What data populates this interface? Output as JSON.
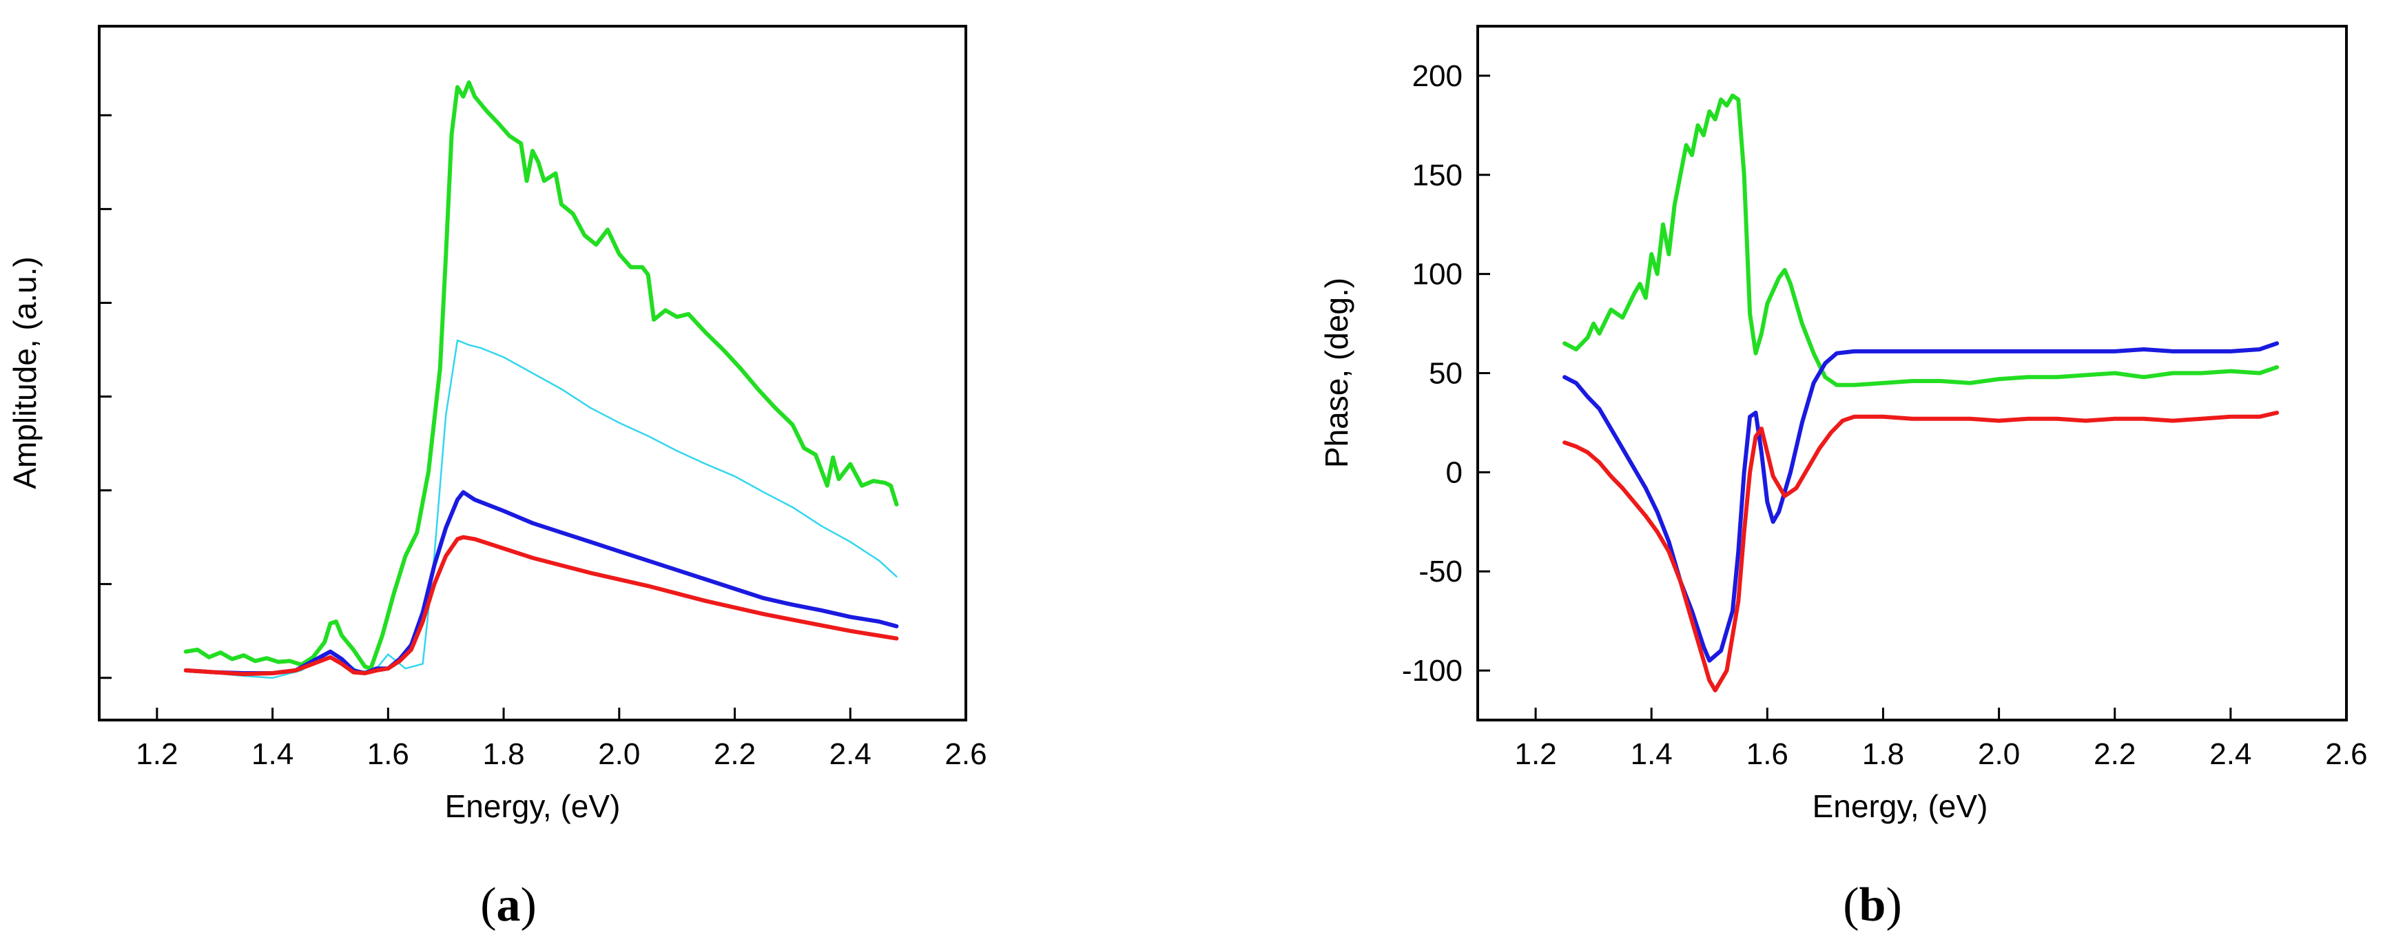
{
  "chart_data": [
    {
      "id": "a",
      "type": "line",
      "panel_label_open": "(",
      "panel_label_letter": "a",
      "panel_label_close": ")",
      "xlabel": "Energy, (eV)",
      "ylabel": "Amplitude, (a.u.)",
      "xlim": [
        1.1,
        2.6
      ],
      "ylim": [
        -0.45,
        6.95
      ],
      "x_ticks": [
        "1.2",
        "1.4",
        "1.6",
        "1.8",
        "2.0",
        "2.2",
        "2.4",
        "2.6"
      ],
      "x_tick_values": [
        1.2,
        1.4,
        1.6,
        1.8,
        2.0,
        2.2,
        2.4,
        2.6
      ],
      "y_tick_values": [
        0,
        1,
        2,
        3,
        4,
        5,
        6
      ],
      "y_ticks_labeled": false,
      "grid": false,
      "series": [
        {
          "name": "green",
          "color": "#22dd22",
          "width": "thick",
          "x": [
            1.25,
            1.27,
            1.29,
            1.31,
            1.33,
            1.35,
            1.37,
            1.39,
            1.41,
            1.43,
            1.45,
            1.47,
            1.49,
            1.5,
            1.51,
            1.52,
            1.54,
            1.56,
            1.57,
            1.59,
            1.61,
            1.63,
            1.65,
            1.67,
            1.69,
            1.7,
            1.71,
            1.72,
            1.73,
            1.74,
            1.75,
            1.77,
            1.79,
            1.81,
            1.83,
            1.84,
            1.85,
            1.86,
            1.87,
            1.89,
            1.9,
            1.92,
            1.94,
            1.96,
            1.98,
            2.0,
            2.02,
            2.04,
            2.05,
            2.06,
            2.08,
            2.1,
            2.12,
            2.15,
            2.18,
            2.21,
            2.24,
            2.27,
            2.3,
            2.32,
            2.34,
            2.36,
            2.37,
            2.38,
            2.4,
            2.42,
            2.44,
            2.46,
            2.47,
            2.48
          ],
          "y": [
            0.28,
            0.3,
            0.22,
            0.27,
            0.2,
            0.24,
            0.18,
            0.21,
            0.17,
            0.18,
            0.14,
            0.22,
            0.38,
            0.58,
            0.6,
            0.45,
            0.3,
            0.12,
            0.1,
            0.45,
            0.9,
            1.3,
            1.55,
            2.2,
            3.3,
            4.5,
            5.8,
            6.3,
            6.2,
            6.35,
            6.2,
            6.05,
            5.92,
            5.78,
            5.7,
            5.3,
            5.62,
            5.5,
            5.3,
            5.38,
            5.05,
            4.95,
            4.72,
            4.62,
            4.78,
            4.52,
            4.38,
            4.38,
            4.3,
            3.82,
            3.92,
            3.85,
            3.88,
            3.68,
            3.5,
            3.3,
            3.08,
            2.88,
            2.7,
            2.45,
            2.38,
            2.05,
            2.35,
            2.12,
            2.28,
            2.05,
            2.1,
            2.08,
            2.05,
            1.85
          ]
        },
        {
          "name": "cyan",
          "color": "#33d6ee",
          "width": "thin",
          "x": [
            1.25,
            1.3,
            1.35,
            1.4,
            1.45,
            1.48,
            1.5,
            1.52,
            1.55,
            1.58,
            1.6,
            1.63,
            1.66,
            1.68,
            1.7,
            1.72,
            1.74,
            1.76,
            1.8,
            1.85,
            1.9,
            1.95,
            2.0,
            2.05,
            2.1,
            2.15,
            2.2,
            2.25,
            2.3,
            2.35,
            2.4,
            2.45,
            2.48
          ],
          "y": [
            0.08,
            0.05,
            0.02,
            0.0,
            0.08,
            0.2,
            0.28,
            0.2,
            0.06,
            0.1,
            0.25,
            0.1,
            0.15,
            1.3,
            2.8,
            3.6,
            3.55,
            3.52,
            3.42,
            3.25,
            3.08,
            2.88,
            2.72,
            2.58,
            2.42,
            2.28,
            2.15,
            1.98,
            1.82,
            1.62,
            1.45,
            1.25,
            1.08
          ]
        },
        {
          "name": "blue",
          "color": "#1a1ae0",
          "width": "thick",
          "x": [
            1.25,
            1.3,
            1.35,
            1.4,
            1.44,
            1.47,
            1.5,
            1.52,
            1.54,
            1.56,
            1.58,
            1.6,
            1.62,
            1.64,
            1.66,
            1.68,
            1.7,
            1.72,
            1.73,
            1.75,
            1.8,
            1.85,
            1.9,
            1.95,
            2.0,
            2.05,
            2.1,
            2.15,
            2.2,
            2.25,
            2.3,
            2.35,
            2.4,
            2.45,
            2.48
          ],
          "y": [
            0.08,
            0.06,
            0.05,
            0.05,
            0.08,
            0.18,
            0.28,
            0.2,
            0.08,
            0.05,
            0.1,
            0.1,
            0.2,
            0.35,
            0.7,
            1.2,
            1.6,
            1.9,
            1.98,
            1.9,
            1.78,
            1.65,
            1.55,
            1.45,
            1.35,
            1.25,
            1.15,
            1.05,
            0.95,
            0.85,
            0.78,
            0.72,
            0.65,
            0.6,
            0.55
          ]
        },
        {
          "name": "red",
          "color": "#ee1a1a",
          "width": "thick",
          "x": [
            1.25,
            1.3,
            1.35,
            1.4,
            1.44,
            1.47,
            1.5,
            1.52,
            1.54,
            1.56,
            1.58,
            1.6,
            1.62,
            1.64,
            1.66,
            1.68,
            1.7,
            1.72,
            1.73,
            1.75,
            1.8,
            1.85,
            1.9,
            1.95,
            2.0,
            2.05,
            2.1,
            2.15,
            2.2,
            2.25,
            2.3,
            2.35,
            2.4,
            2.45,
            2.48
          ],
          "y": [
            0.08,
            0.06,
            0.04,
            0.05,
            0.08,
            0.15,
            0.22,
            0.15,
            0.06,
            0.05,
            0.08,
            0.1,
            0.18,
            0.3,
            0.6,
            1.0,
            1.3,
            1.48,
            1.5,
            1.48,
            1.38,
            1.28,
            1.2,
            1.12,
            1.05,
            0.98,
            0.9,
            0.82,
            0.75,
            0.68,
            0.62,
            0.56,
            0.5,
            0.45,
            0.42
          ]
        }
      ]
    },
    {
      "id": "b",
      "type": "line",
      "panel_label_open": "(",
      "panel_label_letter": "b",
      "panel_label_close": ")",
      "xlabel": "Energy, (eV)",
      "ylabel": "Phase, (deg.)",
      "xlim": [
        1.1,
        2.6
      ],
      "ylim": [
        -125,
        225
      ],
      "x_ticks": [
        "1.2",
        "1.4",
        "1.6",
        "1.8",
        "2.0",
        "2.2",
        "2.4",
        "2.6"
      ],
      "x_tick_values": [
        1.2,
        1.4,
        1.6,
        1.8,
        2.0,
        2.2,
        2.4,
        2.6
      ],
      "y_ticks": [
        "-100",
        "-50",
        "0",
        "50",
        "100",
        "150",
        "200"
      ],
      "y_tick_values": [
        -100,
        -50,
        0,
        50,
        100,
        150,
        200
      ],
      "grid": false,
      "series": [
        {
          "name": "green",
          "color": "#22dd22",
          "width": "thick",
          "x": [
            1.25,
            1.27,
            1.29,
            1.3,
            1.31,
            1.33,
            1.35,
            1.37,
            1.38,
            1.39,
            1.4,
            1.41,
            1.42,
            1.43,
            1.44,
            1.45,
            1.46,
            1.47,
            1.48,
            1.49,
            1.5,
            1.51,
            1.52,
            1.53,
            1.54,
            1.55,
            1.56,
            1.57,
            1.58,
            1.59,
            1.6,
            1.62,
            1.63,
            1.64,
            1.66,
            1.68,
            1.7,
            1.72,
            1.75,
            1.8,
            1.85,
            1.9,
            1.95,
            2.0,
            2.05,
            2.1,
            2.15,
            2.2,
            2.25,
            2.3,
            2.35,
            2.4,
            2.45,
            2.48
          ],
          "y": [
            65,
            62,
            68,
            75,
            70,
            82,
            78,
            90,
            95,
            88,
            110,
            100,
            125,
            110,
            135,
            150,
            165,
            160,
            175,
            170,
            182,
            178,
            188,
            185,
            190,
            188,
            150,
            80,
            60,
            70,
            85,
            98,
            102,
            95,
            75,
            60,
            48,
            44,
            44,
            45,
            46,
            46,
            45,
            47,
            48,
            48,
            49,
            50,
            48,
            50,
            50,
            51,
            50,
            53
          ]
        },
        {
          "name": "blue",
          "color": "#1a1ae0",
          "width": "thick",
          "x": [
            1.25,
            1.27,
            1.29,
            1.31,
            1.33,
            1.35,
            1.37,
            1.39,
            1.41,
            1.43,
            1.45,
            1.47,
            1.49,
            1.5,
            1.52,
            1.54,
            1.55,
            1.56,
            1.57,
            1.58,
            1.59,
            1.6,
            1.61,
            1.62,
            1.64,
            1.66,
            1.68,
            1.7,
            1.72,
            1.75,
            1.8,
            1.85,
            1.9,
            1.95,
            2.0,
            2.05,
            2.1,
            2.15,
            2.2,
            2.25,
            2.3,
            2.35,
            2.4,
            2.45,
            2.48
          ],
          "y": [
            48,
            45,
            38,
            32,
            22,
            12,
            2,
            -8,
            -20,
            -35,
            -55,
            -70,
            -88,
            -95,
            -90,
            -70,
            -40,
            0,
            28,
            30,
            10,
            -15,
            -25,
            -20,
            0,
            25,
            45,
            55,
            60,
            61,
            61,
            61,
            61,
            61,
            61,
            61,
            61,
            61,
            61,
            62,
            61,
            61,
            61,
            62,
            65
          ]
        },
        {
          "name": "red",
          "color": "#ee1a1a",
          "width": "thick",
          "x": [
            1.25,
            1.27,
            1.29,
            1.31,
            1.33,
            1.35,
            1.37,
            1.39,
            1.41,
            1.43,
            1.45,
            1.47,
            1.49,
            1.5,
            1.51,
            1.53,
            1.55,
            1.56,
            1.57,
            1.58,
            1.59,
            1.6,
            1.61,
            1.63,
            1.65,
            1.67,
            1.69,
            1.71,
            1.73,
            1.75,
            1.8,
            1.85,
            1.9,
            1.95,
            2.0,
            2.05,
            2.1,
            2.15,
            2.2,
            2.25,
            2.3,
            2.35,
            2.4,
            2.45,
            2.48
          ],
          "y": [
            15,
            13,
            10,
            5,
            -2,
            -8,
            -15,
            -22,
            -30,
            -40,
            -55,
            -75,
            -95,
            -105,
            -110,
            -100,
            -65,
            -30,
            0,
            18,
            22,
            10,
            -2,
            -12,
            -8,
            2,
            12,
            20,
            26,
            28,
            28,
            27,
            27,
            27,
            26,
            27,
            27,
            26,
            27,
            27,
            26,
            27,
            28,
            28,
            30
          ]
        }
      ]
    }
  ]
}
